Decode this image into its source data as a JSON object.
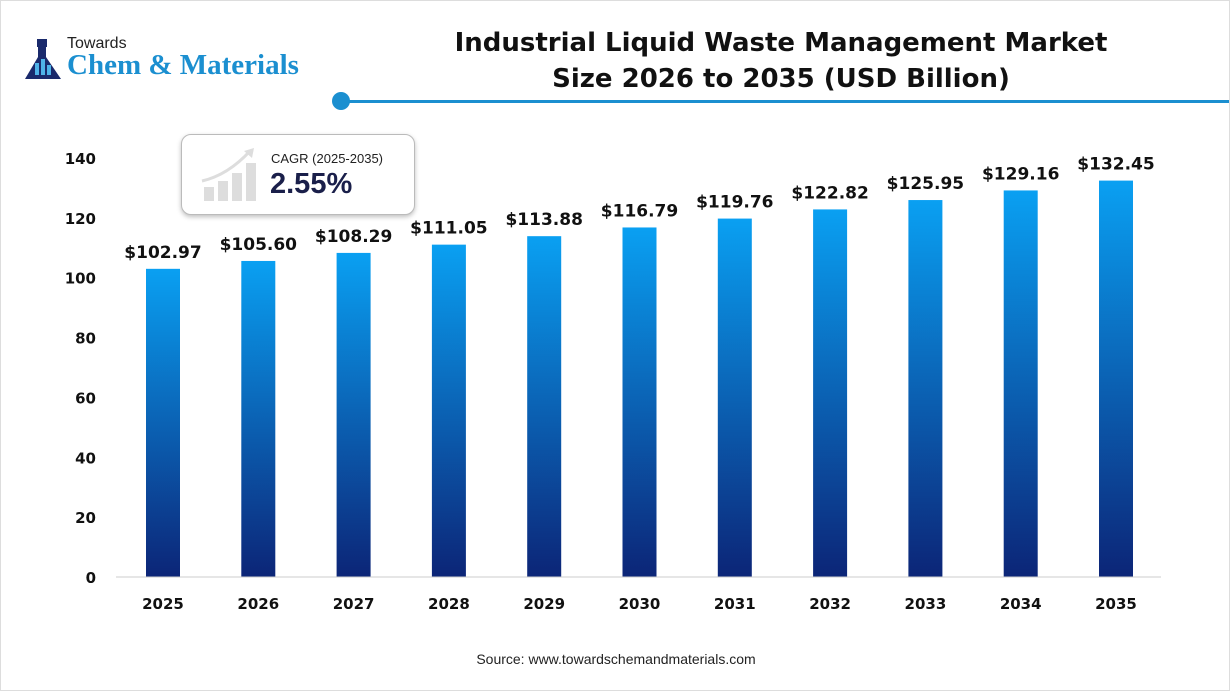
{
  "logo": {
    "top": "Towards",
    "main": "Chem & Materials"
  },
  "title_line1": "Industrial Liquid Waste Management Market",
  "title_line2": "Size 2026 to 2035 (USD Billion)",
  "cagr": {
    "label": "CAGR (2025-2035)",
    "value": "2.55%"
  },
  "source": "Source: www.towardschemandmaterials.com",
  "colors": {
    "accent": "#1b8fd0",
    "bar_top": "#0aa0f2",
    "bar_bottom": "#0c2577"
  },
  "chart_data": {
    "type": "bar",
    "categories": [
      "2025",
      "2026",
      "2027",
      "2028",
      "2029",
      "2030",
      "2031",
      "2032",
      "2033",
      "2034",
      "2035"
    ],
    "values": [
      102.97,
      105.6,
      108.29,
      111.05,
      113.88,
      116.79,
      119.76,
      122.82,
      125.95,
      129.16,
      132.45
    ],
    "data_labels": [
      "$102.97",
      "$105.60",
      "$108.29",
      "$111.05",
      "$113.88",
      "$116.79",
      "$119.76",
      "$122.82",
      "$125.95",
      "$129.16",
      "$132.45"
    ],
    "yticks": [
      0,
      20,
      40,
      60,
      80,
      100,
      120,
      140
    ],
    "ylim": [
      0,
      140
    ],
    "grid": false
  }
}
